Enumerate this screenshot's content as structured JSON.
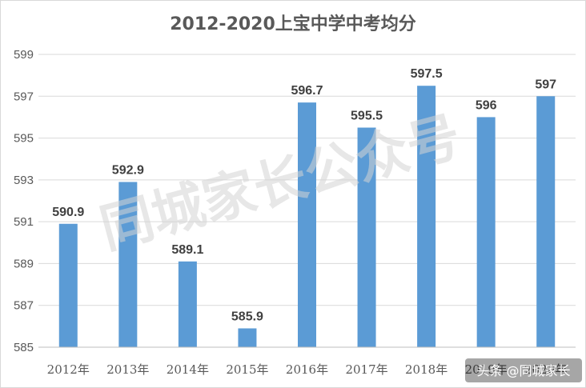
{
  "chart_data": {
    "type": "bar",
    "title": "2012-2020上宝中学中考均分",
    "categories": [
      "2012年",
      "2013年",
      "2014年",
      "2015年",
      "2016年",
      "2017年",
      "2018年",
      "2019年",
      "2020年"
    ],
    "values": [
      590.9,
      592.9,
      589.1,
      585.9,
      596.7,
      595.5,
      597.5,
      596,
      597
    ],
    "data_labels": [
      "590.9",
      "592.9",
      "589.1",
      "585.9",
      "596.7",
      "595.5",
      "597.5",
      "596",
      "597"
    ],
    "ylim": [
      585,
      599
    ],
    "yticks": [
      585,
      587,
      589,
      591,
      593,
      595,
      597,
      599
    ],
    "grid": true,
    "bar_color": "#5b9bd5",
    "xlabel": "",
    "ylabel": ""
  },
  "watermark": "同城家长公众号",
  "credit": "头条 @同城家长"
}
